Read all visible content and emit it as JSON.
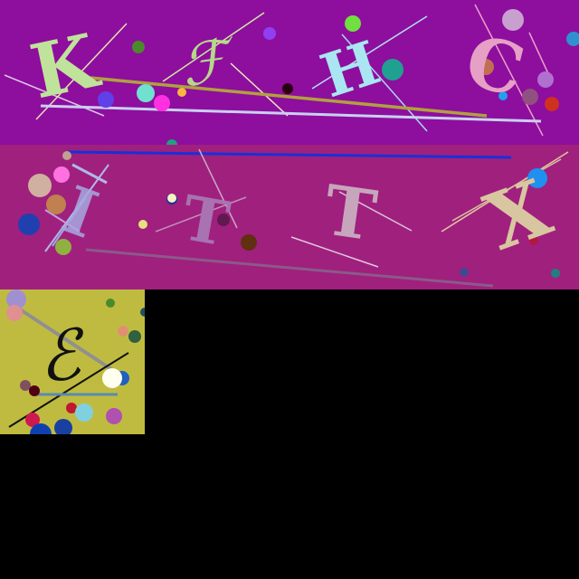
{
  "panels": [
    {
      "background": "#8e0e9e",
      "letters": [
        {
          "text": "K",
          "color": "#bfe39a"
        },
        {
          "text": "ℱ",
          "color": "#b6d88a"
        },
        {
          "text": "H",
          "color": "#a9e6f2"
        },
        {
          "text": "C",
          "color": "#e6a0c6"
        }
      ]
    },
    {
      "background": "#a0207e",
      "letters": [
        {
          "text": "T",
          "color": "#a873b0"
        },
        {
          "text": "T",
          "color": "#c7a6bd"
        },
        {
          "text": "T",
          "color": "#caa8c8"
        },
        {
          "text": "X",
          "color": "#d8c6a0"
        }
      ]
    },
    {
      "background": "#bfbb41",
      "letters": [
        {
          "text": "ℰ",
          "color": "#111111"
        }
      ]
    }
  ]
}
